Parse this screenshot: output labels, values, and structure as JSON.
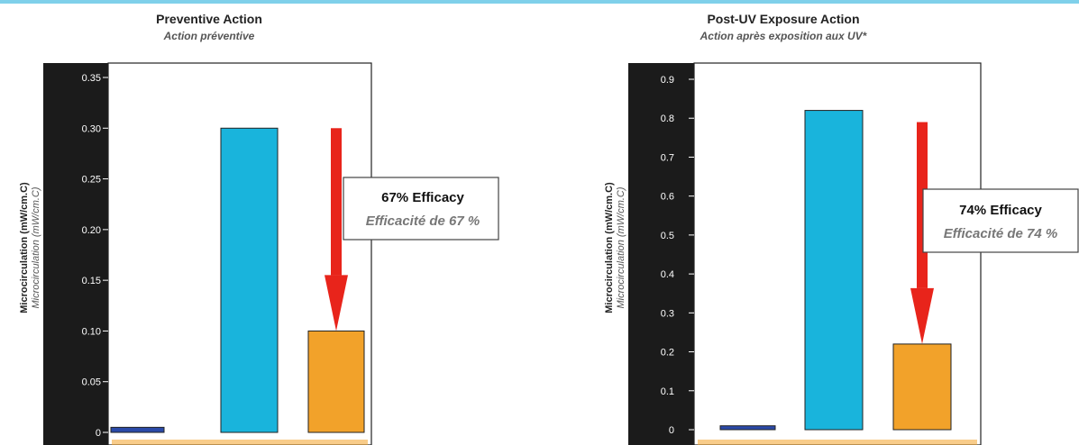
{
  "chart_data": [
    {
      "type": "bar",
      "title": "Preventive Action",
      "subtitle": "Action préventive",
      "ylabel": "Microcirculation (mW/cm.C)",
      "ylabel_alt": "Microcirculation (mW/cm.C)",
      "ylim": [
        0,
        0.35
      ],
      "yticks": [
        "0",
        "0.05",
        "0.10",
        "0.15",
        "0.20",
        "0.25",
        "0.30",
        "0.35"
      ],
      "tick_values": [
        0,
        0.05,
        0.1,
        0.15,
        0.2,
        0.25,
        0.3,
        0.35
      ],
      "values": [
        0.005,
        0.3,
        0.1
      ],
      "colors": [
        "#2b4aa8",
        "#19b4dc",
        "#f2a22a"
      ],
      "annotation": {
        "text": "67% Efficacy",
        "text_alt": "Efficacité de 67 %",
        "from_value": 0.3,
        "to_value": 0.1,
        "arrow_color": "#e8241b"
      }
    },
    {
      "type": "bar",
      "title": "Post-UV Exposure Action",
      "subtitle": "Action après exposition aux UV*",
      "ylabel": "Microcirculation (mW/cm.C)",
      "ylabel_alt": "Microcirculation (mW/cm.C)",
      "ylim": [
        0,
        0.9
      ],
      "yticks": [
        "0",
        "0.1",
        "0.2",
        "0.3",
        "0.4",
        "0.5",
        "0.6",
        "0.7",
        "0.8",
        "0.9"
      ],
      "tick_values": [
        0,
        0.1,
        0.2,
        0.3,
        0.4,
        0.5,
        0.6,
        0.7,
        0.8,
        0.9
      ],
      "values": [
        0.01,
        0.82,
        0.22
      ],
      "colors": [
        "#2b4aa8",
        "#19b4dc",
        "#f2a22a"
      ],
      "annotation": {
        "text": "74% Efficacy",
        "text_alt": "Efficacité de 74 %",
        "from_value": 0.79,
        "to_value": 0.22,
        "arrow_color": "#e8241b"
      }
    }
  ]
}
